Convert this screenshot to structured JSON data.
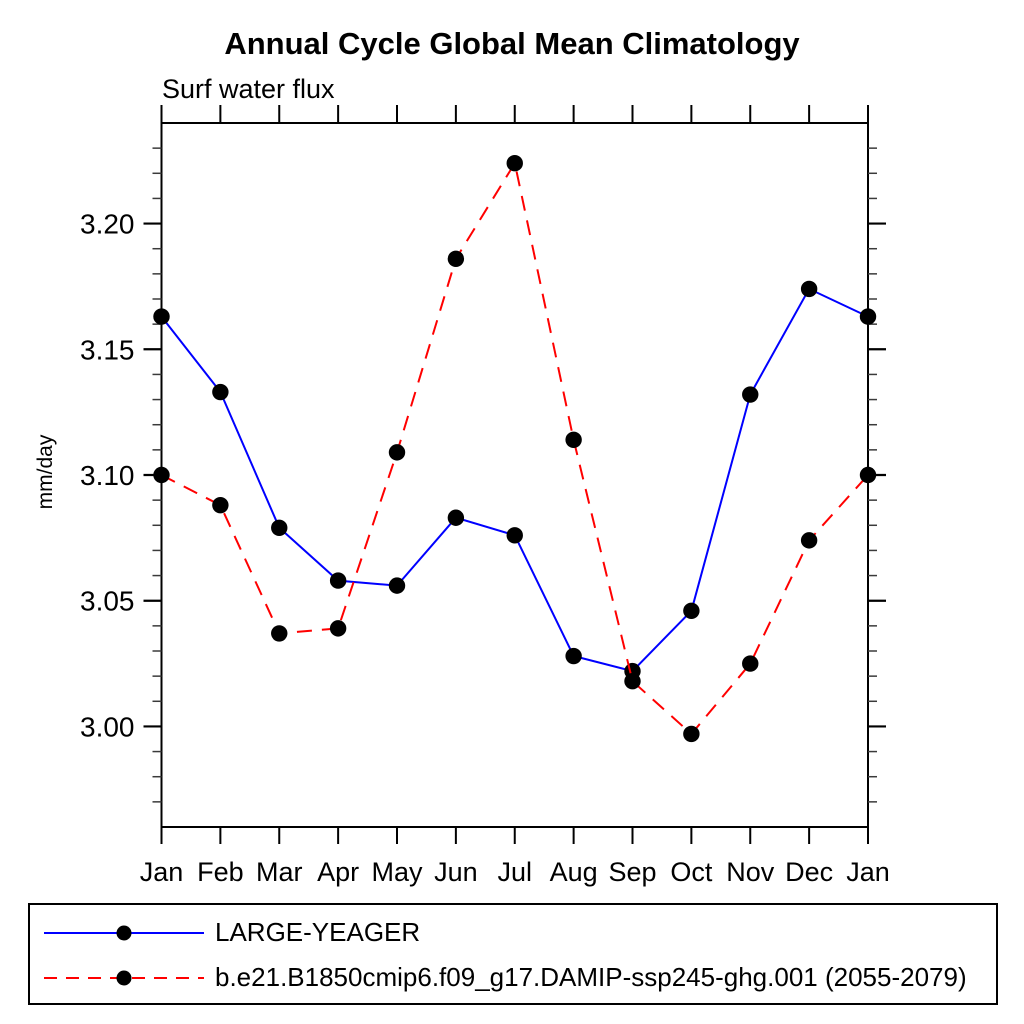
{
  "chart_data": {
    "type": "line",
    "title": "Annual Cycle Global Mean Climatology",
    "subtitle": "Surf water flux",
    "xlabel": "",
    "ylabel": "mm/day",
    "categories": [
      "Jan",
      "Feb",
      "Mar",
      "Apr",
      "May",
      "Jun",
      "Jul",
      "Aug",
      "Sep",
      "Oct",
      "Nov",
      "Dec",
      "Jan"
    ],
    "ylim": [
      2.96,
      3.24
    ],
    "ytick_major_step": 0.05,
    "ytick_minor_step": 0.01,
    "ytick_labels": [
      "3.00",
      "3.05",
      "3.10",
      "3.15",
      "3.20"
    ],
    "grid": false,
    "legend_position": "bottom",
    "axis_color": "#000000",
    "marker_color": "#000000",
    "series": [
      {
        "name": "LARGE-YEAGER",
        "color": "#0000ff",
        "style": "solid",
        "marker": "circle",
        "values": [
          3.163,
          3.133,
          3.079,
          3.058,
          3.056,
          3.083,
          3.076,
          3.028,
          3.022,
          3.046,
          3.132,
          3.174,
          3.163
        ]
      },
      {
        "name": "b.e21.B1850cmip6.f09_g17.DAMIP-ssp245-ghg.001 (2055-2079)",
        "color": "#ff0000",
        "style": "dashed",
        "marker": "circle",
        "values": [
          3.1,
          3.088,
          3.037,
          3.039,
          3.109,
          3.186,
          3.224,
          3.114,
          3.018,
          2.997,
          3.025,
          3.074,
          3.1
        ]
      }
    ]
  }
}
